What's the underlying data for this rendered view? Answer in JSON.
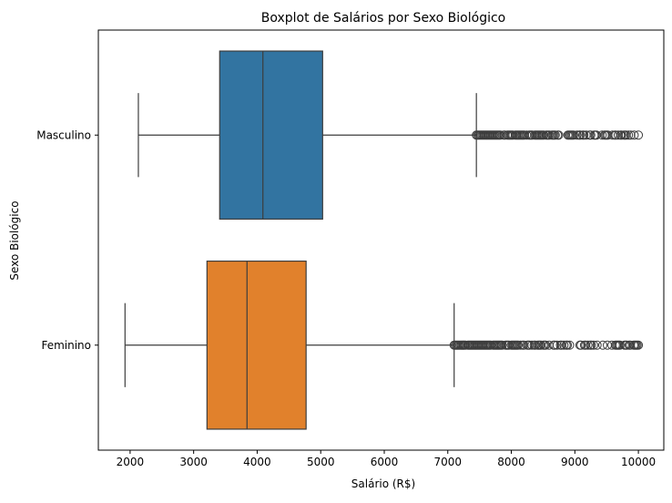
{
  "chart_data": {
    "type": "boxplot",
    "orientation": "horizontal",
    "title": "Boxplot de Salários por Sexo Biológico",
    "xlabel": "Salário (R$)",
    "ylabel": "Sexo Biológico",
    "xlim": [
      1500,
      10400
    ],
    "xticks": [
      2000,
      3000,
      4000,
      5000,
      6000,
      7000,
      8000,
      9000,
      10000
    ],
    "grid": false,
    "categories": [
      "Masculino",
      "Feminino"
    ],
    "series": [
      {
        "category": "Masculino",
        "color": "#3274a1",
        "whisker_low": 2130,
        "q1": 3410,
        "median": 4090,
        "q3": 5030,
        "whisker_high": 7450,
        "outlier_range": [
          7450,
          10000
        ]
      },
      {
        "category": "Feminino",
        "color": "#e1812c",
        "whisker_low": 1920,
        "q1": 3210,
        "median": 3840,
        "q3": 4770,
        "whisker_high": 7100,
        "outlier_range": [
          7100,
          10000
        ]
      }
    ]
  }
}
